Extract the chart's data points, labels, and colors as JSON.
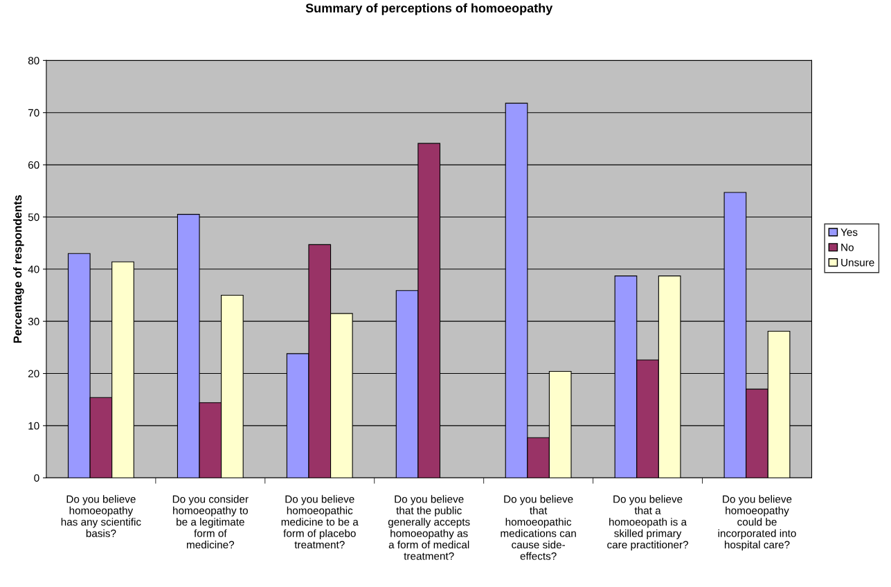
{
  "chart_data": {
    "type": "bar",
    "title": "Summary of perceptions of homoeopathy",
    "ylabel": "Percentage of respondents",
    "categories": [
      "Do you believe\nhomoeopathy\nhas any scientific\nbasis?",
      "Do you consider\nhomoeopathy to\nbe a legitimate\nform of\nmedicine?",
      "Do you believe\nhomoeopathic\nmedicine to be a\nform of placebo\ntreatment?",
      "Do you believe\nthat the public\ngenerally accepts\nhomoeopathy as\na form of medical\ntreatment?",
      "Do you believe\nthat\nhomoeopathic\nmedications can\ncause side-\neffects?",
      "Do you believe\nthat a\nhomoeopath is a\nskilled primary\ncare practitioner?",
      "Do you believe\nhomoeopathy\ncould be\nincorporated into\nhospital care?"
    ],
    "series": [
      {
        "name": "Yes",
        "color": "#9999ff",
        "values": [
          43.0,
          50.5,
          23.8,
          35.9,
          71.8,
          38.7,
          54.7
        ]
      },
      {
        "name": "No",
        "color": "#993366",
        "values": [
          15.4,
          14.4,
          44.7,
          64.1,
          7.7,
          22.6,
          17.0
        ]
      },
      {
        "name": "Unsure",
        "color": "#ffffcc",
        "values": [
          41.4,
          35.0,
          31.5,
          null,
          20.4,
          38.7,
          28.1
        ]
      }
    ],
    "ylim": [
      0,
      80
    ],
    "yticks": [
      0,
      10,
      20,
      30,
      40,
      50,
      60,
      70,
      80
    ],
    "grid": "y",
    "legend": "right"
  }
}
